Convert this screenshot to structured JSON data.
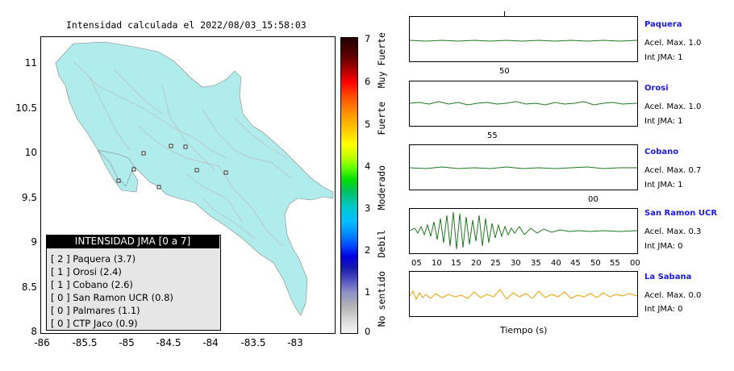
{
  "map": {
    "title": "Intensidad calculada el 2022/08/03_15:58:03",
    "y_ticks": [
      "11",
      "10.5",
      "10",
      "9.5",
      "9",
      "8.5",
      "8"
    ],
    "x_ticks": [
      "-86",
      "-85.5",
      "-85",
      "-84.5",
      "-84",
      "-83.5",
      "-83"
    ],
    "land_color": "#b0ecec",
    "legend": {
      "title": "INTENSIDAD JMA [0 a 7]",
      "items": [
        "[ 2 ]  Paquera (3.7)",
        "[ 1 ]  Orosi (2.4)",
        "[ 1 ]  Cobano (2.6)",
        "[ 0 ]  San Ramon UCR (0.8)",
        "[ 0 ]  Palmares (1.1)",
        "[ 0 ]  CTP Jaco (0.9)"
      ]
    }
  },
  "colorbar": {
    "ticks": [
      "7",
      "6",
      "5",
      "4",
      "3",
      "2",
      "1",
      "0"
    ],
    "labels": [
      "Muy Fuerte",
      "Fuerte",
      "Moderado",
      "Debil",
      "No sentido"
    ]
  },
  "waveforms": {
    "x_axis_title": "Tiempo (s)",
    "bottom_ticks": [
      "05",
      "10",
      "15",
      "20",
      "25",
      "30",
      "35",
      "40",
      "45",
      "50",
      "55",
      "00"
    ],
    "stations": [
      {
        "name": "Paquera",
        "accel": "Acel. Max. 1.0",
        "jma": "Int JMA: 1",
        "color": "#1f7a1f",
        "top_label": "50"
      },
      {
        "name": "Orosi",
        "accel": "Acel. Max. 1.0",
        "jma": "Int JMA: 1",
        "color": "#1f7a1f",
        "top_label": "55"
      },
      {
        "name": "Cobano",
        "accel": "Acel. Max. 0.7",
        "jma": "Int JMA: 1",
        "color": "#1f7a1f",
        "top_label": "00"
      },
      {
        "name": "San Ramon UCR",
        "accel": "Acel. Max. 0.3",
        "jma": "Int JMA: 0",
        "color": "#1f7a1f",
        "top_label": ""
      },
      {
        "name": "La Sabana",
        "accel": "Acel. Max. 0.0",
        "jma": "Int JMA: 0",
        "color": "#f0a000",
        "top_label": ""
      }
    ]
  }
}
